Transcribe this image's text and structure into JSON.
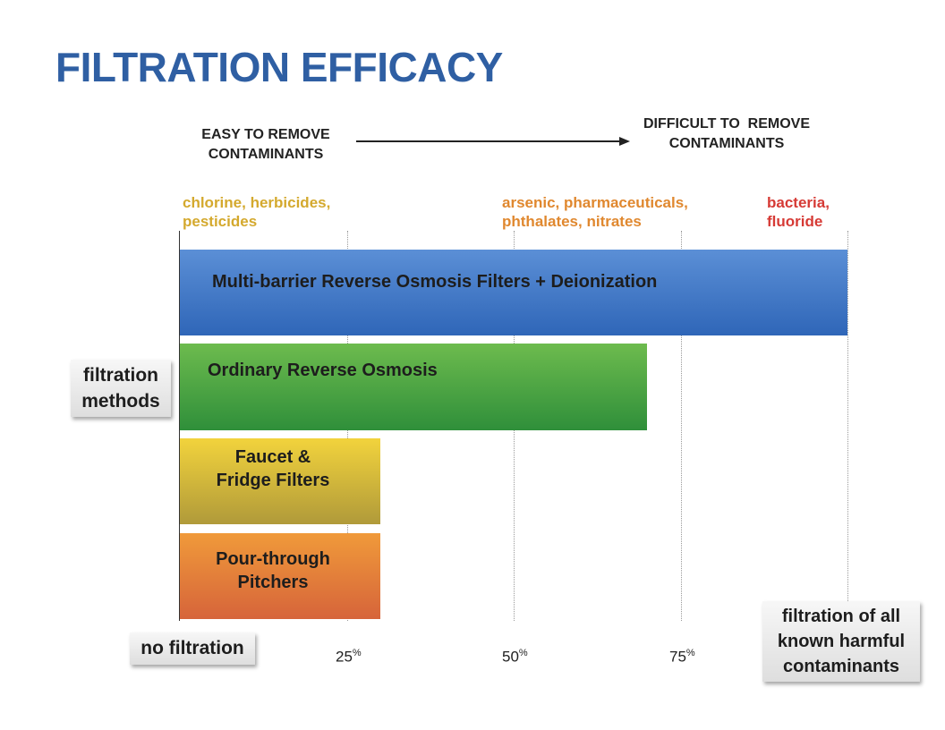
{
  "title": "FILTRATION EFFICACY",
  "difficulty": {
    "easy": [
      "EASY TO REMOVE",
      "CONTAMINANTS"
    ],
    "difficult": [
      "DIFFICULT TO  REMOVE",
      "CONTAMINANTS"
    ]
  },
  "contaminant_groups": [
    {
      "lines": [
        "chlorine, herbicides,",
        "pesticides"
      ],
      "color": "#d4a92e"
    },
    {
      "lines": [
        "arsenic, pharmaceuticals,",
        "phthalates, nitrates"
      ],
      "color": "#e0882f"
    },
    {
      "lines": [
        "bacteria,",
        "fluoride"
      ],
      "color": "#d63a35"
    }
  ],
  "y_axis_label": [
    "filtration",
    "methods"
  ],
  "x_min_label": "no filtration",
  "x_max_label": [
    "filtration of all",
    "known harmful",
    "contaminants"
  ],
  "chart_data": {
    "type": "bar",
    "orientation": "horizontal",
    "categories": [
      "Multi-barrier Reverse Osmosis Filters + Deionization",
      "Ordinary Reverse Osmosis",
      "Faucet & Fridge Filters",
      "Pour-through Pitchers"
    ],
    "values": [
      100,
      70,
      30,
      30
    ],
    "category_lines": [
      [
        "Multi-barrier Reverse Osmosis Filters + Deionization"
      ],
      [
        "Ordinary Reverse Osmosis"
      ],
      [
        "Faucet &",
        "Fridge Filters"
      ],
      [
        "Pour-through",
        "Pitchers"
      ]
    ],
    "colors": [
      "#3f78c8",
      "#4aa444",
      "#d7bf3a",
      "#e57a38"
    ],
    "xlim": [
      0,
      100
    ],
    "ticks": [
      {
        "value": 25,
        "num": "25",
        "unit": "%"
      },
      {
        "value": 50,
        "num": "50",
        "unit": "%"
      },
      {
        "value": 75,
        "num": "75",
        "unit": "%"
      }
    ],
    "grid": true,
    "legend": "none"
  }
}
